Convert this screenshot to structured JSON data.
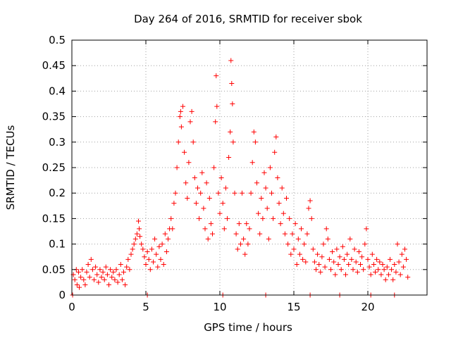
{
  "chart_data": {
    "type": "scatter",
    "title": "Day 264 of 2016, SRMTID for receiver sbok",
    "xlabel": "GPS time / hours",
    "ylabel": "SRMTID / TECUs",
    "xlim": [
      0,
      24
    ],
    "ylim": [
      0,
      0.5
    ],
    "grid": true,
    "marker": "+",
    "marker_color": "#ff0000",
    "xticks": [
      {
        "value": 0,
        "label": "0"
      },
      {
        "value": 5,
        "label": "5"
      },
      {
        "value": 10,
        "label": "10"
      },
      {
        "value": 15,
        "label": "15"
      },
      {
        "value": 20,
        "label": "20"
      }
    ],
    "yticks": [
      {
        "value": 0,
        "label": "0"
      },
      {
        "value": 0.05,
        "label": "0.05"
      },
      {
        "value": 0.1,
        "label": "0.1"
      },
      {
        "value": 0.15,
        "label": "0.15"
      },
      {
        "value": 0.2,
        "label": "0.2"
      },
      {
        "value": 0.25,
        "label": "0.25"
      },
      {
        "value": 0.3,
        "label": "0.3"
      },
      {
        "value": 0.35,
        "label": "0.35"
      },
      {
        "value": 0.4,
        "label": "0.4"
      },
      {
        "value": 0.45,
        "label": "0.45"
      },
      {
        "value": 0.5,
        "label": "0.5"
      }
    ],
    "series": [
      {
        "name": "SRMTID",
        "points": [
          [
            0.05,
            0.0
          ],
          [
            0.1,
            0.04
          ],
          [
            0.2,
            0.03
          ],
          [
            0.3,
            0.05
          ],
          [
            0.35,
            0.02
          ],
          [
            0.45,
            0.045
          ],
          [
            0.5,
            0.015
          ],
          [
            0.6,
            0.035
          ],
          [
            0.7,
            0.05
          ],
          [
            0.8,
            0.03
          ],
          [
            0.9,
            0.02
          ],
          [
            1.0,
            0.045
          ],
          [
            1.1,
            0.06
          ],
          [
            1.2,
            0.035
          ],
          [
            1.3,
            0.07
          ],
          [
            1.4,
            0.05
          ],
          [
            1.5,
            0.03
          ],
          [
            1.6,
            0.055
          ],
          [
            1.7,
            0.04
          ],
          [
            1.8,
            0.025
          ],
          [
            1.9,
            0.05
          ],
          [
            2.0,
            0.035
          ],
          [
            2.1,
            0.045
          ],
          [
            2.2,
            0.03
          ],
          [
            2.3,
            0.055
          ],
          [
            2.4,
            0.04
          ],
          [
            2.5,
            0.02
          ],
          [
            2.6,
            0.05
          ],
          [
            2.7,
            0.035
          ],
          [
            2.8,
            0.045
          ],
          [
            2.9,
            0.03
          ],
          [
            3.0,
            0.05
          ],
          [
            3.1,
            0.025
          ],
          [
            3.2,
            0.04
          ],
          [
            3.3,
            0.06
          ],
          [
            3.4,
            0.03
          ],
          [
            3.5,
            0.045
          ],
          [
            3.6,
            0.02
          ],
          [
            3.7,
            0.055
          ],
          [
            3.8,
            0.07
          ],
          [
            3.9,
            0.05
          ],
          [
            4.0,
            0.08
          ],
          [
            4.1,
            0.09
          ],
          [
            4.2,
            0.1
          ],
          [
            4.3,
            0.11
          ],
          [
            4.4,
            0.12
          ],
          [
            4.5,
            0.145
          ],
          [
            4.55,
            0.13
          ],
          [
            4.6,
            0.115
          ],
          [
            4.7,
            0.1
          ],
          [
            4.8,
            0.09
          ],
          [
            4.9,
            0.075
          ],
          [
            5.0,
            0.06
          ],
          [
            5.1,
            0.085
          ],
          [
            5.2,
            0.07
          ],
          [
            5.3,
            0.05
          ],
          [
            5.4,
            0.09
          ],
          [
            5.5,
            0.065
          ],
          [
            5.6,
            0.11
          ],
          [
            5.7,
            0.08
          ],
          [
            5.8,
            0.055
          ],
          [
            5.9,
            0.095
          ],
          [
            6.0,
            0.07
          ],
          [
            6.1,
            0.1
          ],
          [
            6.2,
            0.06
          ],
          [
            6.3,
            0.12
          ],
          [
            6.4,
            0.085
          ],
          [
            6.5,
            0.11
          ],
          [
            6.6,
            0.13
          ],
          [
            6.7,
            0.15
          ],
          [
            6.8,
            0.13
          ],
          [
            6.9,
            0.18
          ],
          [
            7.0,
            0.2
          ],
          [
            7.1,
            0.25
          ],
          [
            7.2,
            0.3
          ],
          [
            7.3,
            0.35
          ],
          [
            7.35,
            0.36
          ],
          [
            7.4,
            0.33
          ],
          [
            7.5,
            0.37
          ],
          [
            7.6,
            0.28
          ],
          [
            7.7,
            0.22
          ],
          [
            7.8,
            0.19
          ],
          [
            7.9,
            0.26
          ],
          [
            8.0,
            0.34
          ],
          [
            8.1,
            0.36
          ],
          [
            8.2,
            0.3
          ],
          [
            8.3,
            0.23
          ],
          [
            8.4,
            0.18
          ],
          [
            8.5,
            0.21
          ],
          [
            8.6,
            0.15
          ],
          [
            8.7,
            0.2
          ],
          [
            8.8,
            0.24
          ],
          [
            8.9,
            0.17
          ],
          [
            9.0,
            0.13
          ],
          [
            9.1,
            0.22
          ],
          [
            9.2,
            0.11
          ],
          [
            9.3,
            0.19
          ],
          [
            9.4,
            0.14
          ],
          [
            9.5,
            0.12
          ],
          [
            9.6,
            0.25
          ],
          [
            9.7,
            0.34
          ],
          [
            9.75,
            0.43
          ],
          [
            9.8,
            0.37
          ],
          [
            9.9,
            0.2
          ],
          [
            10.0,
            0.16
          ],
          [
            10.1,
            0.23
          ],
          [
            10.2,
            0.18
          ],
          [
            10.3,
            0.13
          ],
          [
            10.4,
            0.21
          ],
          [
            10.5,
            0.15
          ],
          [
            10.6,
            0.27
          ],
          [
            10.7,
            0.32
          ],
          [
            10.75,
            0.46
          ],
          [
            10.8,
            0.415
          ],
          [
            10.85,
            0.375
          ],
          [
            10.9,
            0.3
          ],
          [
            11.0,
            0.2
          ],
          [
            11.1,
            0.12
          ],
          [
            11.2,
            0.09
          ],
          [
            11.3,
            0.14
          ],
          [
            11.4,
            0.1
          ],
          [
            11.5,
            0.2
          ],
          [
            11.6,
            0.11
          ],
          [
            11.7,
            0.08
          ],
          [
            11.8,
            0.14
          ],
          [
            11.9,
            0.1
          ],
          [
            12.0,
            0.13
          ],
          [
            12.1,
            0.2
          ],
          [
            12.2,
            0.26
          ],
          [
            12.3,
            0.32
          ],
          [
            12.4,
            0.3
          ],
          [
            12.5,
            0.22
          ],
          [
            12.6,
            0.16
          ],
          [
            12.7,
            0.12
          ],
          [
            12.8,
            0.19
          ],
          [
            12.9,
            0.15
          ],
          [
            13.0,
            0.24
          ],
          [
            13.1,
            0.21
          ],
          [
            13.2,
            0.17
          ],
          [
            13.3,
            0.11
          ],
          [
            13.4,
            0.25
          ],
          [
            13.5,
            0.2
          ],
          [
            13.6,
            0.15
          ],
          [
            13.7,
            0.28
          ],
          [
            13.8,
            0.31
          ],
          [
            13.9,
            0.23
          ],
          [
            14.0,
            0.18
          ],
          [
            14.1,
            0.14
          ],
          [
            14.2,
            0.21
          ],
          [
            14.3,
            0.16
          ],
          [
            14.4,
            0.12
          ],
          [
            14.5,
            0.19
          ],
          [
            14.6,
            0.1
          ],
          [
            14.7,
            0.15
          ],
          [
            14.8,
            0.08
          ],
          [
            14.9,
            0.12
          ],
          [
            15.0,
            0.09
          ],
          [
            15.1,
            0.14
          ],
          [
            15.2,
            0.06
          ],
          [
            15.3,
            0.11
          ],
          [
            15.4,
            0.08
          ],
          [
            15.5,
            0.13
          ],
          [
            15.6,
            0.07
          ],
          [
            15.7,
            0.1
          ],
          [
            15.8,
            0.065
          ],
          [
            15.9,
            0.12
          ],
          [
            16.0,
            0.17
          ],
          [
            16.1,
            0.185
          ],
          [
            16.2,
            0.15
          ],
          [
            16.3,
            0.09
          ],
          [
            16.4,
            0.065
          ],
          [
            16.5,
            0.05
          ],
          [
            16.6,
            0.08
          ],
          [
            16.7,
            0.06
          ],
          [
            16.8,
            0.045
          ],
          [
            16.9,
            0.075
          ],
          [
            17.0,
            0.1
          ],
          [
            17.1,
            0.055
          ],
          [
            17.2,
            0.13
          ],
          [
            17.3,
            0.11
          ],
          [
            17.4,
            0.07
          ],
          [
            17.5,
            0.05
          ],
          [
            17.6,
            0.085
          ],
          [
            17.7,
            0.065
          ],
          [
            17.8,
            0.04
          ],
          [
            17.9,
            0.09
          ],
          [
            18.0,
            0.06
          ],
          [
            18.1,
            0.075
          ],
          [
            18.2,
            0.05
          ],
          [
            18.3,
            0.095
          ],
          [
            18.4,
            0.07
          ],
          [
            18.5,
            0.04
          ],
          [
            18.6,
            0.08
          ],
          [
            18.7,
            0.06
          ],
          [
            18.8,
            0.11
          ],
          [
            18.9,
            0.07
          ],
          [
            19.0,
            0.05
          ],
          [
            19.1,
            0.09
          ],
          [
            19.2,
            0.065
          ],
          [
            19.3,
            0.045
          ],
          [
            19.4,
            0.085
          ],
          [
            19.5,
            0.06
          ],
          [
            19.6,
            0.075
          ],
          [
            19.7,
            0.05
          ],
          [
            19.8,
            0.1
          ],
          [
            19.9,
            0.13
          ],
          [
            20.0,
            0.07
          ],
          [
            20.1,
            0.055
          ],
          [
            20.2,
            0.04
          ],
          [
            20.3,
            0.08
          ],
          [
            20.4,
            0.06
          ],
          [
            20.5,
            0.045
          ],
          [
            20.6,
            0.07
          ],
          [
            20.7,
            0.05
          ],
          [
            20.8,
            0.065
          ],
          [
            20.9,
            0.04
          ],
          [
            21.0,
            0.06
          ],
          [
            21.1,
            0.05
          ],
          [
            21.2,
            0.03
          ],
          [
            21.3,
            0.055
          ],
          [
            21.4,
            0.04
          ],
          [
            21.5,
            0.07
          ],
          [
            21.6,
            0.05
          ],
          [
            21.7,
            0.03
          ],
          [
            21.8,
            0.06
          ],
          [
            21.9,
            0.045
          ],
          [
            22.0,
            0.1
          ],
          [
            22.1,
            0.065
          ],
          [
            22.2,
            0.04
          ],
          [
            22.3,
            0.08
          ],
          [
            22.4,
            0.055
          ],
          [
            22.5,
            0.09
          ],
          [
            22.6,
            0.07
          ],
          [
            22.7,
            0.035
          ],
          [
            5.1,
            0.0
          ],
          [
            10.2,
            0.0
          ],
          [
            13.1,
            0.0
          ],
          [
            16.1,
            0.0
          ],
          [
            18.1,
            0.0
          ],
          [
            20.2,
            0.0
          ],
          [
            21.8,
            0.0
          ]
        ]
      }
    ]
  }
}
